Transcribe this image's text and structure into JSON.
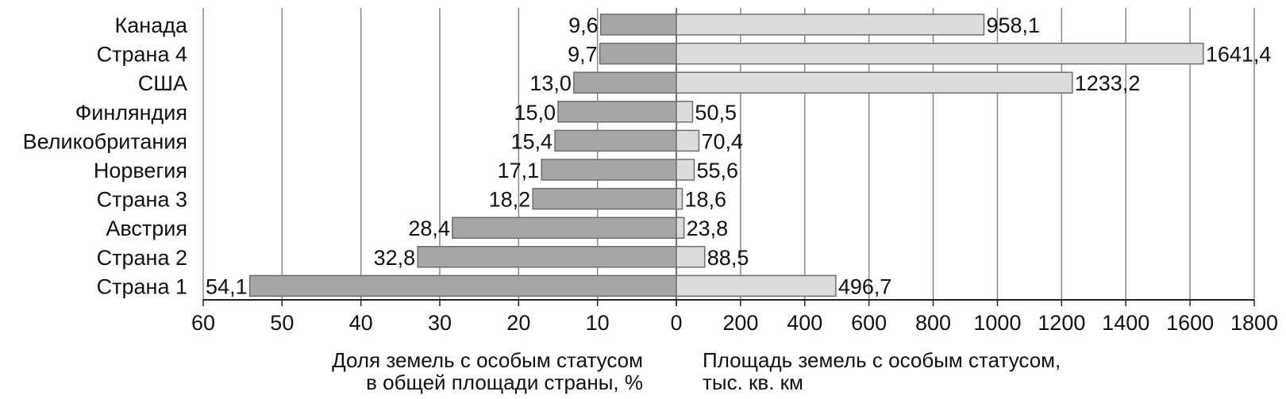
{
  "chart_data": {
    "type": "bar",
    "orientation": "horizontal",
    "layout": "back-to-back",
    "categories": [
      "Канада",
      "Страна 4",
      "США",
      "Финляндия",
      "Великобритания",
      "Норвегия",
      "Страна 3",
      "Австрия",
      "Страна 2",
      "Страна 1"
    ],
    "left": {
      "title_lines": [
        "Доля земель с особым статусом",
        "в общей площади страны, %"
      ],
      "values": [
        9.6,
        9.7,
        13.0,
        15.0,
        15.4,
        17.1,
        18.2,
        28.4,
        32.8,
        54.1
      ],
      "value_labels": [
        "9,6",
        "9,7",
        "13,0",
        "15,0",
        "15,4",
        "17,1",
        "18,2",
        "28,4",
        "32,8",
        "54,1"
      ],
      "xlim": [
        0,
        60
      ],
      "ticks": [
        "60",
        "50",
        "40",
        "30",
        "20",
        "10",
        "0"
      ],
      "tick_values": [
        60,
        50,
        40,
        30,
        20,
        10,
        0
      ],
      "bar_color": "#a6a6a6"
    },
    "right": {
      "title_lines": [
        "Площадь земель с особым статусом,",
        "тыс. кв. км"
      ],
      "values": [
        958.1,
        1641.4,
        1233.2,
        50.5,
        70.4,
        55.6,
        18.6,
        23.8,
        88.5,
        496.7
      ],
      "value_labels": [
        "958,1",
        "1641,4",
        "1233,2",
        "50,5",
        "70,4",
        "55,6",
        "18,6",
        "23,8",
        "88,5",
        "496,7"
      ],
      "xlim": [
        0,
        1800
      ],
      "ticks": [
        "200",
        "400",
        "600",
        "800",
        "1000",
        "1200",
        "1400",
        "1600",
        "1800"
      ],
      "tick_values": [
        200,
        400,
        600,
        800,
        1000,
        1200,
        1400,
        1600,
        1800
      ],
      "bar_color": "#dcdcdc"
    },
    "grid": true,
    "gridline_color": "#888888",
    "bar_border_color": "#6e6e6e"
  }
}
